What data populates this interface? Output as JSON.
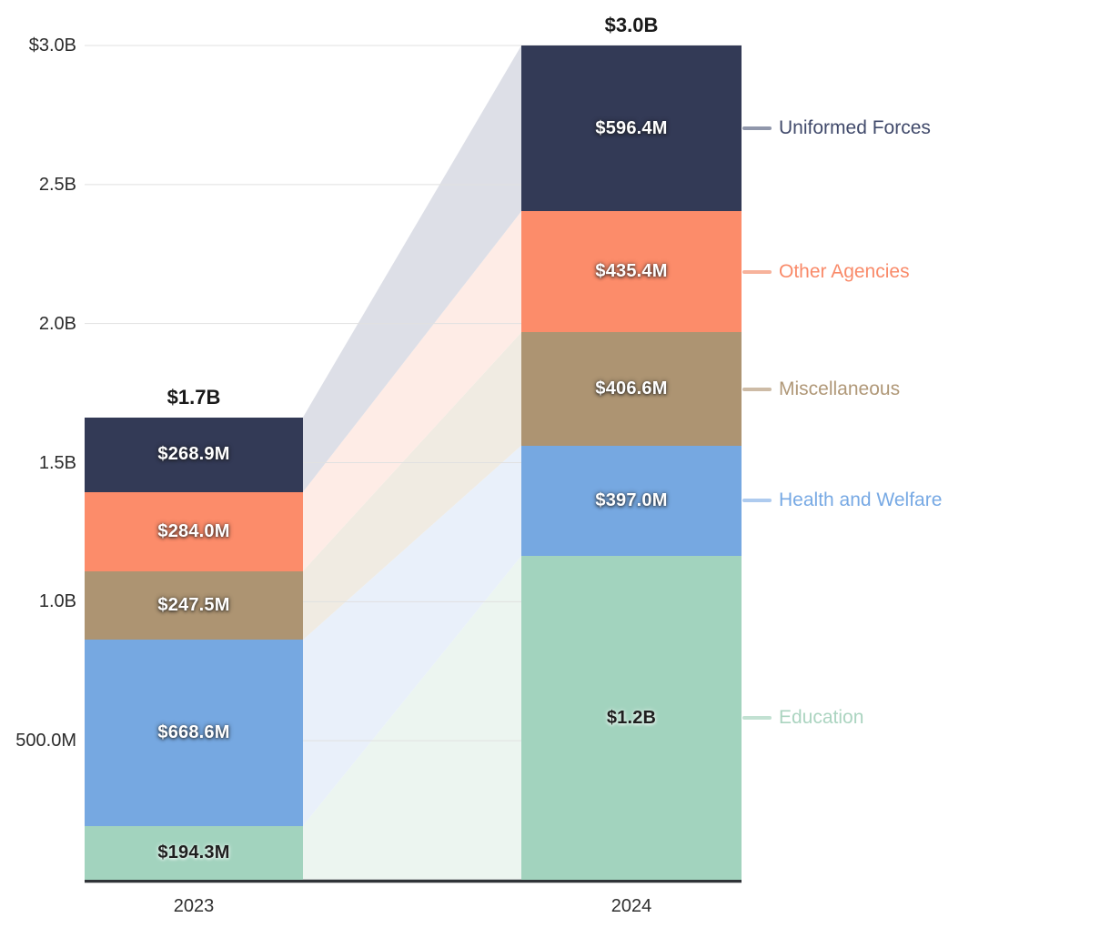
{
  "chart_data": {
    "type": "bar",
    "variant": "stacked_bars_with_flow_ribbons",
    "title": "",
    "categories": [
      "2023",
      "2024"
    ],
    "unit": "USD millions",
    "ylim": [
      0,
      3000
    ],
    "grid": true,
    "grid_step_millions": 500,
    "legend_position": "right",
    "y_ticks": [
      "$3.0B",
      "2.5B",
      "2.0B",
      "1.5B",
      "1.0B",
      "500.0M"
    ],
    "y_tick_values": [
      3000,
      2500,
      2000,
      1500,
      1000,
      500
    ],
    "totals": [
      "$1.7B",
      "$3.0B"
    ],
    "series": [
      {
        "name": "Uniformed Forces",
        "values": [
          268.9,
          596.4
        ],
        "labels": [
          "$268.9M",
          "$596.4M"
        ],
        "color": "#333A56",
        "flow_tint": "#DDDFE7",
        "value_label_style": "light",
        "legend_text_color": "#414A6B",
        "connector_color": "#9097AB"
      },
      {
        "name": "Other Agencies",
        "values": [
          284.0,
          435.4
        ],
        "labels": [
          "$284.0M",
          "$435.4M"
        ],
        "color": "#FC8C6A",
        "flow_tint": "#FEECE6",
        "value_label_style": "light",
        "legend_text_color": "#F98A69",
        "connector_color": "#F7B29B"
      },
      {
        "name": "Miscellaneous",
        "values": [
          247.5,
          406.6
        ],
        "labels": [
          "$247.5M",
          "$406.6M"
        ],
        "color": "#AD9472",
        "flow_tint": "#F0EBE2",
        "value_label_style": "light",
        "legend_text_color": "#B09878",
        "connector_color": "#CDBBA6"
      },
      {
        "name": "Health and Welfare",
        "values": [
          668.6,
          397.0
        ],
        "labels": [
          "$668.6M",
          "$397.0M"
        ],
        "color": "#76A8E1",
        "flow_tint": "#E9F0FA",
        "value_label_style": "light",
        "legend_text_color": "#77A9E4",
        "connector_color": "#AECBEF"
      },
      {
        "name": "Education",
        "values": [
          194.3,
          1164.6
        ],
        "labels": [
          "$194.3M",
          "$1.2B"
        ],
        "color": "#A2D3BE",
        "flow_tint": "#ECF5F0",
        "value_label_style": "dark",
        "legend_text_color": "#ABD4C0",
        "connector_color": "#C2E1D2"
      }
    ],
    "axis_color": "#303438",
    "gridline_color": "#E1E1E1",
    "tick_text_color": "#2B2B2B",
    "total_text_color": "#1A1A1A"
  }
}
